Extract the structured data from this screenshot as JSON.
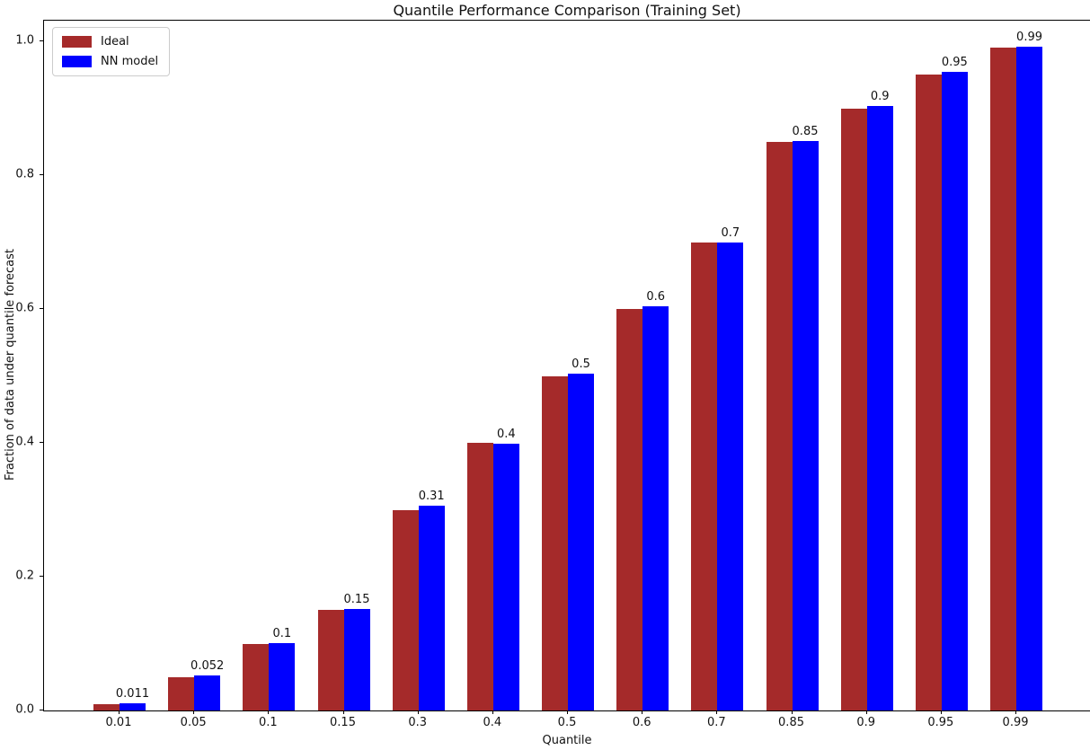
{
  "chart_data": {
    "type": "bar",
    "title": "Quantile Performance Comparison (Training Set)",
    "xlabel": "Quantile",
    "ylabel": "Fraction of data under quantile forecast",
    "categories": [
      "0.01",
      "0.05",
      "0.1",
      "0.15",
      "0.3",
      "0.4",
      "0.5",
      "0.6",
      "0.7",
      "0.85",
      "0.9",
      "0.95",
      "0.99"
    ],
    "series": [
      {
        "name": "Ideal",
        "color": "#A52A2A",
        "values": [
          0.01,
          0.05,
          0.1,
          0.15,
          0.3,
          0.4,
          0.5,
          0.6,
          0.7,
          0.85,
          0.9,
          0.95,
          0.99
        ]
      },
      {
        "name": "NN model",
        "color": "#0000FF",
        "values": [
          0.011,
          0.052,
          0.101,
          0.152,
          0.306,
          0.398,
          0.504,
          0.604,
          0.7,
          0.851,
          0.904,
          0.955,
          0.992
        ],
        "bar_labels": [
          "0.011",
          "0.052",
          "0.1",
          "0.15",
          "0.31",
          "0.4",
          "0.5",
          "0.6",
          "0.7",
          "0.85",
          "0.9",
          "0.95",
          "0.99"
        ]
      }
    ],
    "yticks": [
      "0.0",
      "0.2",
      "0.4",
      "0.6",
      "0.8",
      "1.0"
    ],
    "ylim": [
      0.0,
      1.03
    ],
    "grid": false,
    "legend_position": "upper left",
    "bar_label_series": "NN model"
  }
}
